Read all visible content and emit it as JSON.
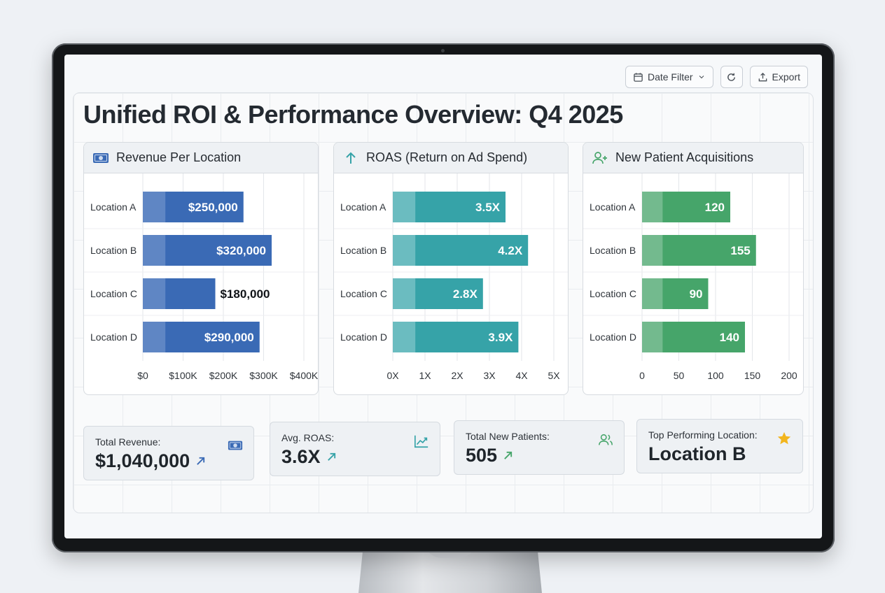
{
  "toolbar": {
    "date_filter_label": "Date Filter",
    "export_label": "Export"
  },
  "page_title": "Unified ROI & Performance Overview: Q4 2025",
  "chart_data": [
    {
      "type": "bar",
      "orientation": "horizontal",
      "title": "Revenue Per Location",
      "categories": [
        "Location A",
        "Location B",
        "Location C",
        "Location D"
      ],
      "values": [
        250000,
        320000,
        180000,
        290000
      ],
      "value_labels": [
        "$250,000",
        "$320,000",
        "$180,000",
        "$290,000"
      ],
      "xlim": [
        0,
        400000
      ],
      "ticks": [
        0,
        100000,
        200000,
        300000,
        400000
      ],
      "tick_labels": [
        "$0",
        "$100K",
        "$200K",
        "$300K",
        "$400K"
      ],
      "color": "#3a6ab5",
      "color_light": "#5f86c4",
      "grid": true
    },
    {
      "type": "bar",
      "orientation": "horizontal",
      "title": "ROAS (Return on Ad Spend)",
      "categories": [
        "Location A",
        "Location B",
        "Location C",
        "Location D"
      ],
      "values": [
        3.5,
        4.2,
        2.8,
        3.9
      ],
      "value_labels": [
        "3.5X",
        "4.2X",
        "2.8X",
        "3.9X"
      ],
      "xlim": [
        0,
        5
      ],
      "ticks": [
        0,
        1,
        2,
        3,
        4,
        5
      ],
      "tick_labels": [
        "0X",
        "1X",
        "2X",
        "3X",
        "4X",
        "5X"
      ],
      "color": "#36a3a8",
      "color_light": "#6bbcc0",
      "grid": true
    },
    {
      "type": "bar",
      "orientation": "horizontal",
      "title": "New Patient Acquisitions",
      "categories": [
        "Location A",
        "Location B",
        "Location C",
        "Location D"
      ],
      "values": [
        120,
        155,
        90,
        140
      ],
      "value_labels": [
        "120",
        "155",
        "90",
        "140"
      ],
      "xlim": [
        0,
        200
      ],
      "ticks": [
        0,
        50,
        100,
        150,
        200
      ],
      "tick_labels": [
        "0",
        "50",
        "100",
        "150",
        "200"
      ],
      "color": "#46a56a",
      "color_light": "#73ba8e",
      "grid": true
    }
  ],
  "kpis": [
    {
      "label": "Total Revenue:",
      "value": "$1,040,000",
      "icon": "money-icon",
      "color": "#3a6ab5"
    },
    {
      "label": "Avg. ROAS:",
      "value": "3.6X",
      "icon": "trend-up-icon",
      "color": "#36a3a8"
    },
    {
      "label": "Total New Patients:",
      "value": "505",
      "icon": "users-icon",
      "color": "#46a56a"
    },
    {
      "label": "Top Performing Location:",
      "value": "Location B",
      "icon": "star-icon",
      "color": "#f2b51d"
    }
  ]
}
